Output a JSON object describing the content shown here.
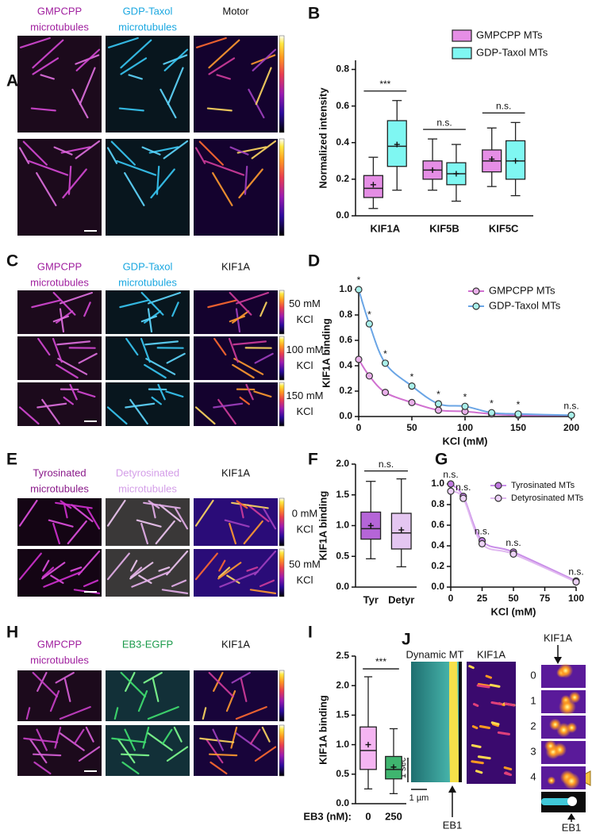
{
  "image_panels": [
    {
      "letter": "A",
      "columns": [
        [
          "GMPCPP",
          "microtubules"
        ],
        [
          "GDP-Taxol",
          "microtubules"
        ],
        [
          "Motor"
        ]
      ],
      "column_colors": [
        "#a0209f",
        "#1aa7e0",
        "#111111"
      ],
      "row_labels": []
    },
    {
      "letter": "C",
      "columns": [
        [
          "GMPCPP",
          "microtubules"
        ],
        [
          "GDP-Taxol",
          "microtubules"
        ],
        [
          "KIF1A"
        ]
      ],
      "column_colors": [
        "#a0209f",
        "#1aa7e0",
        "#111111"
      ],
      "row_labels": [
        [
          "50 mM",
          "KCl"
        ],
        [
          "100 mM",
          "KCl"
        ],
        [
          "150 mM",
          "KCl"
        ]
      ]
    },
    {
      "letter": "E",
      "columns": [
        [
          "Tyrosinated",
          "microtubules"
        ],
        [
          "Detyrosinated",
          "microtubules"
        ],
        [
          "KIF1A"
        ]
      ],
      "column_colors": [
        "#8a1a8a",
        "#d49ee8",
        "#111111"
      ],
      "row_labels": [
        [
          "0 mM",
          "KCl"
        ],
        [
          "50 mM",
          "KCl"
        ]
      ]
    },
    {
      "letter": "H",
      "columns": [
        [
          "GMPCPP",
          "microtubules"
        ],
        [
          "EB3-EGFP"
        ],
        [
          "KIF1A"
        ]
      ],
      "column_colors": [
        "#a0209f",
        "#1a9a4a",
        "#111111"
      ],
      "row_labels": []
    }
  ],
  "kymograph": {
    "letter": "J",
    "dynamic_mt": "Dynamic MT",
    "kif1a": "KIF1A",
    "kif1a_top": "KIF1A",
    "eb1_left": "EB1",
    "eb1_right": "EB1",
    "time_scale": "1 sec",
    "length_scale": "1 µm",
    "frames": [
      "0",
      "1",
      "2",
      "3",
      "4"
    ]
  },
  "chart_data": [
    {
      "letter": "B",
      "type": "box",
      "ylabel": "Normalized intensity",
      "categories": [
        "KIF1A",
        "KIF5B",
        "KIF5C"
      ],
      "ylim": [
        0,
        0.85
      ],
      "yticks": [
        {
          "value": 0,
          "label": "0.0"
        },
        0.2,
        0.4,
        0.6,
        0.8
      ],
      "series": [
        {
          "name": "GMPCPP MTs",
          "color": "#e58ee5",
          "min": [
            0.04,
            0.14,
            0.16
          ],
          "q1": [
            0.1,
            0.2,
            0.24
          ],
          "median": [
            0.15,
            0.25,
            0.3
          ],
          "q3": [
            0.22,
            0.3,
            0.36
          ],
          "max": [
            0.32,
            0.42,
            0.48
          ],
          "mean": [
            0.17,
            0.25,
            0.31
          ]
        },
        {
          "name": "GDP-Taxol MTs",
          "color": "#7ff7f2",
          "min": [
            0.14,
            0.08,
            0.11
          ],
          "q1": [
            0.27,
            0.17,
            0.2
          ],
          "median": [
            0.38,
            0.23,
            0.3
          ],
          "q3": [
            0.52,
            0.29,
            0.41
          ],
          "max": [
            0.63,
            0.39,
            0.51
          ],
          "mean": [
            0.39,
            0.23,
            0.3
          ]
        }
      ],
      "significance": [
        "***",
        "n.s.",
        "n.s."
      ],
      "legend": "upper right"
    },
    {
      "letter": "D",
      "type": "line",
      "xlabel": "KCl (mM)",
      "ylabel": "KIF1A binding",
      "x": [
        0,
        10,
        25,
        50,
        75,
        100,
        125,
        150,
        200
      ],
      "xlim": [
        0,
        200
      ],
      "xticks": [
        0,
        50,
        100,
        150,
        200
      ],
      "ylim": [
        0,
        1
      ],
      "yticks": [
        {
          "value": 0,
          "label": "0.0"
        },
        0.2,
        0.4,
        0.6,
        0.8,
        {
          "value": 1,
          "label": "1.0"
        }
      ],
      "series": [
        {
          "name": "GMPCPP MTs",
          "color": "#d070d0",
          "marker": "#eab0ea",
          "values": [
            0.45,
            0.32,
            0.19,
            0.11,
            0.05,
            0.04,
            0.02,
            0.01,
            0.01
          ]
        },
        {
          "name": "GDP-Taxol MTs",
          "color": "#6aa5e5",
          "marker": "#a9f0ea",
          "values": [
            1.0,
            0.73,
            0.42,
            0.24,
            0.1,
            0.08,
            0.03,
            0.02,
            0.01
          ]
        }
      ],
      "significance": [
        "*",
        "*",
        "*",
        "*",
        "*",
        "*",
        "*",
        "*",
        "n.s."
      ],
      "legend": "upper right"
    },
    {
      "letter": "F",
      "type": "box",
      "ylabel": "KIF1A binding",
      "categories": [
        "Tyr",
        "Detyr"
      ],
      "ylim": [
        0,
        2
      ],
      "yticks": [
        {
          "value": 0,
          "label": "0.0"
        },
        0.5,
        {
          "value": 1,
          "label": "1.0"
        },
        1.5,
        {
          "value": 2,
          "label": "2.0"
        }
      ],
      "series": [
        {
          "colors": [
            "#b565d8",
            "#e4c6f1"
          ],
          "min": [
            0.46,
            0.33
          ],
          "q1": [
            0.78,
            0.62
          ],
          "median": [
            0.95,
            0.88
          ],
          "q3": [
            1.22,
            1.2
          ],
          "max": [
            1.72,
            1.76
          ],
          "mean": [
            1.0,
            0.93
          ]
        }
      ],
      "comparison": "n.s."
    },
    {
      "letter": "G",
      "type": "line",
      "xlabel": "KCl (mM)",
      "x": [
        0,
        10,
        25,
        50,
        100
      ],
      "xlim": [
        0,
        100
      ],
      "xticks": [
        0,
        25,
        50,
        75,
        100
      ],
      "ylim": [
        0,
        1
      ],
      "yticks": [
        {
          "value": 0,
          "label": "0.0"
        },
        0.2,
        0.4,
        0.6,
        0.8,
        {
          "value": 1,
          "label": "1.0"
        }
      ],
      "series": [
        {
          "name": "Tyrosinated MTs",
          "color": "#c98ee8",
          "marker": "#c07ae0",
          "values": [
            1.0,
            0.88,
            0.45,
            0.34,
            0.06
          ]
        },
        {
          "name": "Detyrosinated MTs",
          "color": "#e0b8f0",
          "marker": "#ecd2f6",
          "values": [
            0.93,
            0.86,
            0.42,
            0.32,
            0.05
          ]
        }
      ],
      "significance": [
        "n.s.",
        "n.s.",
        "n.s.",
        "n.s.",
        "n.s."
      ],
      "legend": "upper right"
    },
    {
      "letter": "I",
      "type": "box",
      "ylabel": "KIF1A binding",
      "xlabel": "EB3 (nM):",
      "categories": [
        "0",
        "250"
      ],
      "ylim": [
        0,
        2.5
      ],
      "yticks": [
        {
          "value": 0,
          "label": "0.0"
        },
        0.5,
        {
          "value": 1,
          "label": "1.0"
        },
        1.5,
        {
          "value": 2,
          "label": "2.0"
        },
        2.5
      ],
      "series": [
        {
          "colors": [
            "#f5b5f2",
            "#3fb56f"
          ],
          "min": [
            0.25,
            0.17
          ],
          "q1": [
            0.58,
            0.42
          ],
          "median": [
            0.9,
            0.58
          ],
          "q3": [
            1.3,
            0.8
          ],
          "max": [
            2.15,
            1.27
          ],
          "mean": [
            1.0,
            0.62
          ]
        }
      ],
      "comparison": "***"
    }
  ]
}
